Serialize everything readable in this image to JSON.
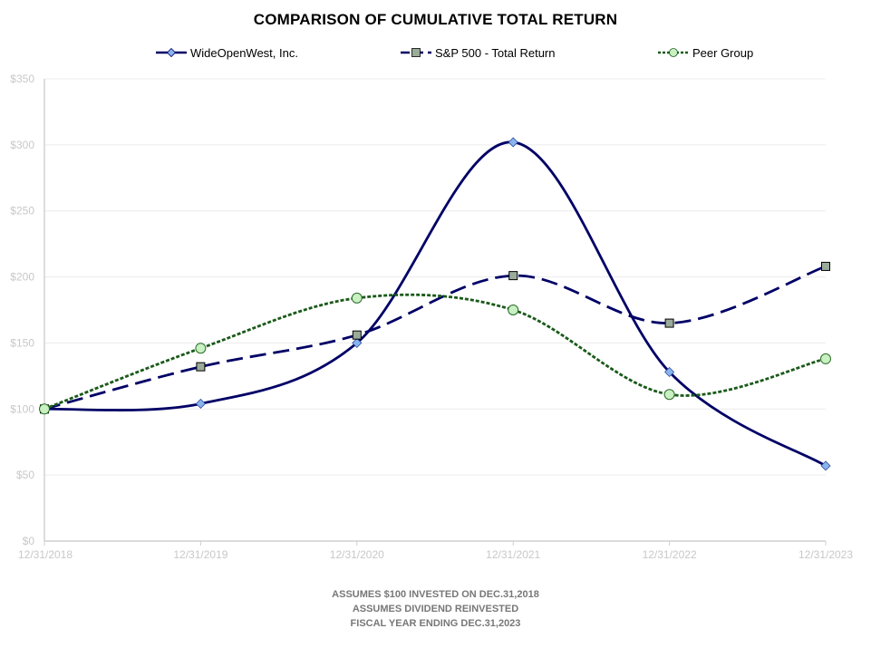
{
  "chart_data": {
    "type": "line",
    "title": "COMPARISON OF CUMULATIVE TOTAL RETURN",
    "categories": [
      "12/31/2018",
      "12/31/2019",
      "12/31/2020",
      "12/31/2021",
      "12/31/2022",
      "12/31/2023"
    ],
    "y_tick_labels": [
      "$0",
      "$50",
      "$100",
      "$150",
      "$200",
      "$250",
      "$300",
      "$350"
    ],
    "ylim": [
      0,
      350
    ],
    "y_step": 50,
    "grid": true,
    "legend_position": "top",
    "smooth": true,
    "series": [
      {
        "name": "WideOpenWest, Inc.",
        "values": [
          100,
          104,
          150,
          302,
          128,
          57
        ],
        "color": "#000066",
        "marker": "diamond",
        "marker_fill": "#8ab4ee",
        "line_style": "solid"
      },
      {
        "name": "S&P 500 - Total Return",
        "values": [
          100,
          132,
          156,
          201,
          165,
          208
        ],
        "color": "#000066",
        "marker": "square",
        "marker_fill": "#9aab9a",
        "line_style": "dashed"
      },
      {
        "name": "Peer Group",
        "values": [
          100,
          146,
          184,
          175,
          111,
          138
        ],
        "color": "#1a5a1a",
        "marker": "circle",
        "marker_fill": "#c8f0c0",
        "line_style": "dotted"
      }
    ]
  },
  "footnotes": [
    "ASSUMES  $100 INVESTED  ON DEC.31,2018",
    "ASSUMES  DIVIDEND  REINVESTED",
    "FISCAL YEAR ENDING DEC.31,2023"
  ]
}
